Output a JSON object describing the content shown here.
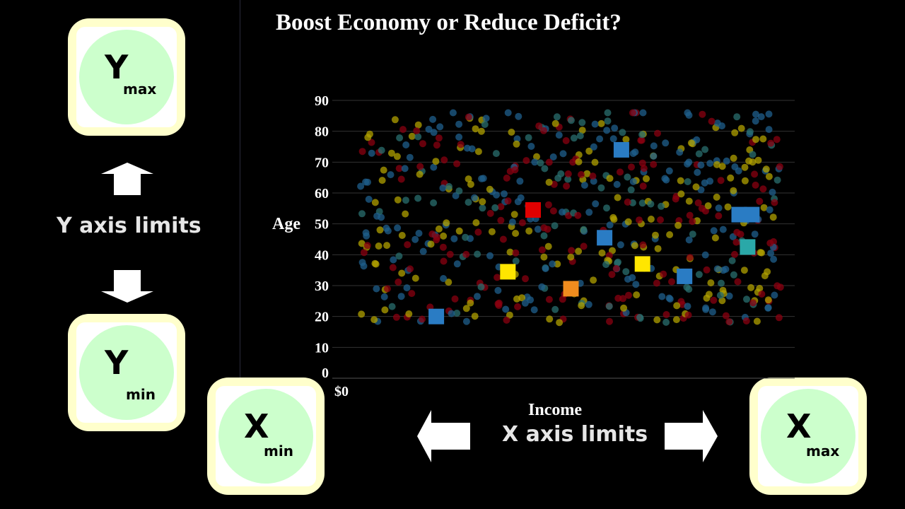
{
  "title": "Boost Economy or Reduce Deficit?",
  "y_axis_limits_label": "Y axis limits",
  "x_axis_limits_label": "X axis limits",
  "keys": {
    "ymax": {
      "letter": "Y",
      "sub": "max"
    },
    "ymin": {
      "letter": "Y",
      "sub": "min"
    },
    "xmin": {
      "letter": "X",
      "sub": "min"
    },
    "xmax": {
      "letter": "X",
      "sub": "max"
    }
  },
  "chart_data": {
    "type": "scatter",
    "title": "Boost Economy or Reduce Deficit?",
    "xlabel": "Income",
    "ylabel": "Age",
    "x_tick_labels": [
      "$0"
    ],
    "y_ticks": [
      0,
      10,
      20,
      30,
      40,
      50,
      60,
      70,
      80,
      90
    ],
    "ylim": [
      0,
      92
    ],
    "xlim": [
      0,
      1
    ],
    "grid": true,
    "colors": {
      "red": "#e00000",
      "yellow": "#ffe600",
      "orange": "#f08c1e",
      "blue": "#2a7cc4",
      "teal": "#2aa8a8"
    },
    "highlighted_points": [
      {
        "x": 0.18,
        "y": 20,
        "color": "#2a7cc4"
      },
      {
        "x": 0.41,
        "y": 54.5,
        "color": "#e00000"
      },
      {
        "x": 0.35,
        "y": 34.5,
        "color": "#ffe600"
      },
      {
        "x": 0.5,
        "y": 29,
        "color": "#f08c1e"
      },
      {
        "x": 0.58,
        "y": 45.5,
        "color": "#2a7cc4"
      },
      {
        "x": 0.62,
        "y": 74,
        "color": "#2a7cc4"
      },
      {
        "x": 0.67,
        "y": 37,
        "color": "#ffe600"
      },
      {
        "x": 0.77,
        "y": 33,
        "color": "#2a7cc4"
      },
      {
        "x": 0.9,
        "y": 53,
        "color": "#2a7cc4"
      },
      {
        "x": 0.93,
        "y": 53,
        "color": "#2a7cc4"
      },
      {
        "x": 0.92,
        "y": 42.5,
        "color": "#2aa8a8"
      }
    ],
    "background_point_count": 620,
    "background_y_range": [
      18,
      87
    ]
  }
}
